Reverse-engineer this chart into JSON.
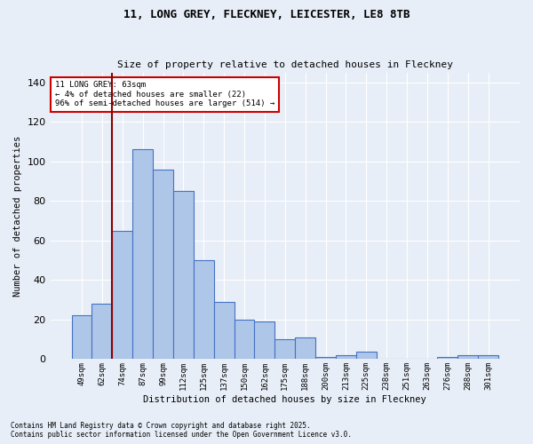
{
  "title1": "11, LONG GREY, FLECKNEY, LEICESTER, LE8 8TB",
  "title2": "Size of property relative to detached houses in Fleckney",
  "xlabel": "Distribution of detached houses by size in Fleckney",
  "ylabel": "Number of detached properties",
  "categories": [
    "49sqm",
    "62sqm",
    "74sqm",
    "87sqm",
    "99sqm",
    "112sqm",
    "125sqm",
    "137sqm",
    "150sqm",
    "162sqm",
    "175sqm",
    "188sqm",
    "200sqm",
    "213sqm",
    "225sqm",
    "238sqm",
    "251sqm",
    "263sqm",
    "276sqm",
    "288sqm",
    "301sqm"
  ],
  "values": [
    22,
    28,
    65,
    106,
    96,
    85,
    50,
    29,
    20,
    19,
    10,
    11,
    1,
    2,
    4,
    0,
    0,
    0,
    1,
    2,
    2
  ],
  "bar_color": "#aec6e8",
  "bar_edge_color": "#4472c4",
  "background_color": "#e8eef7",
  "grid_color": "#ffffff",
  "vline_x": 1.5,
  "vline_color": "#8b0000",
  "annotation_text": "11 LONG GREY: 63sqm\n← 4% of detached houses are smaller (22)\n96% of semi-detached houses are larger (514) →",
  "annotation_box_color": "#ffffff",
  "annotation_box_edge": "#cc0000",
  "ylim": [
    0,
    145
  ],
  "footnote1": "Contains HM Land Registry data © Crown copyright and database right 2025.",
  "footnote2": "Contains public sector information licensed under the Open Government Licence v3.0."
}
